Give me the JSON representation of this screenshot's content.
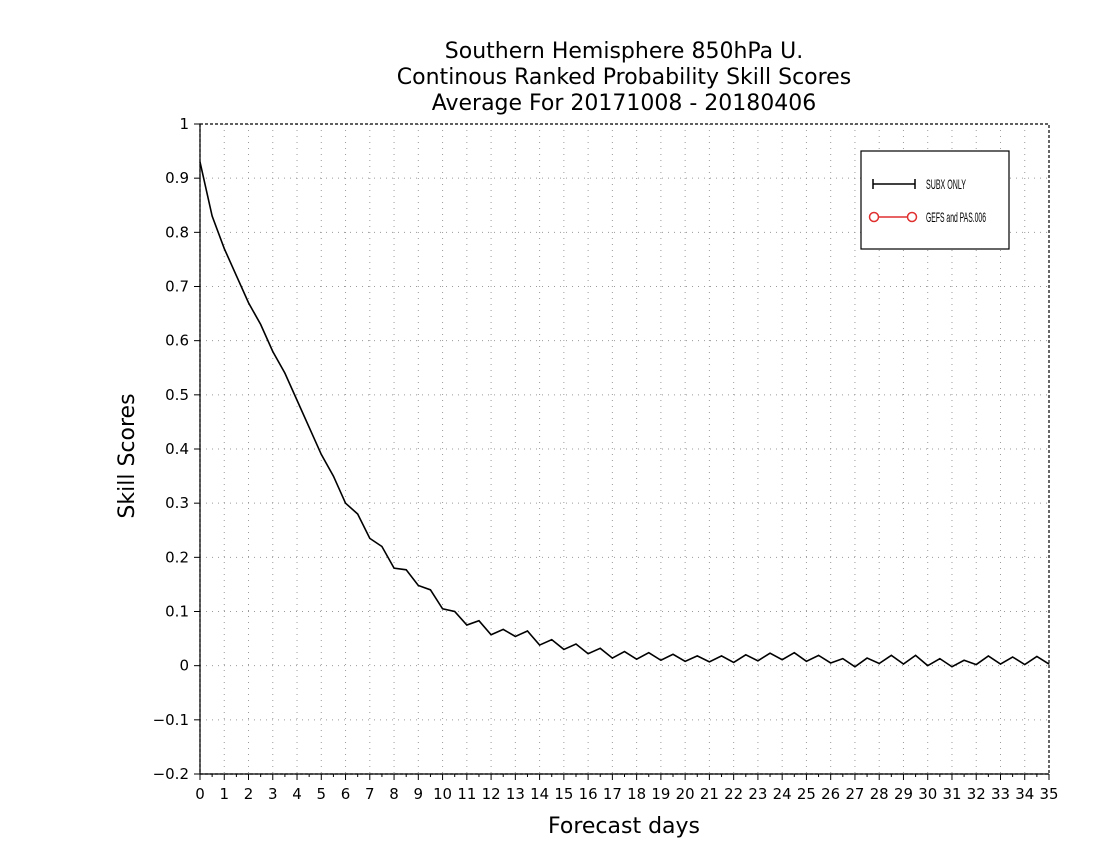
{
  "chart_data": {
    "type": "line",
    "title": [
      "Southern Hemisphere 850hPa U.",
      "Continous Ranked Probability Skill Scores",
      "Average For 20171008 - 20180406"
    ],
    "xlabel": "Forecast days",
    "ylabel": "Skill Scores",
    "xlim": [
      0,
      35
    ],
    "ylim": [
      -0.2,
      1
    ],
    "x_ticks": [
      0,
      1,
      2,
      3,
      4,
      5,
      6,
      7,
      8,
      9,
      10,
      11,
      12,
      13,
      14,
      15,
      16,
      17,
      18,
      19,
      20,
      21,
      22,
      23,
      24,
      25,
      26,
      27,
      28,
      29,
      30,
      31,
      32,
      33,
      34,
      35
    ],
    "y_ticks": [
      -0.2,
      -0.1,
      0,
      0.1,
      0.2,
      0.3,
      0.4,
      0.5,
      0.6,
      0.7,
      0.8,
      0.9,
      1
    ],
    "y_tick_labels": [
      "−0.2",
      "−0.1",
      "0",
      "0.1",
      "0.2",
      "0.3",
      "0.4",
      "0.5",
      "0.6",
      "0.7",
      "0.8",
      "0.9",
      "1"
    ],
    "grid": true,
    "legend_position": "top-right",
    "legend": [
      {
        "name": "SUBX ONLY",
        "color": "#000000",
        "marker": "plus"
      },
      {
        "name": "GEFS and PAS.006",
        "color": "#e03030",
        "marker": "circle"
      }
    ],
    "series": [
      {
        "name": "SUBX ONLY",
        "color": "#000000",
        "x": [
          0,
          0.5,
          1,
          1.5,
          2,
          2.5,
          3,
          3.5,
          4,
          4.5,
          5,
          5.5,
          6,
          6.5,
          7,
          7.5,
          8,
          8.5,
          9,
          9.5,
          10,
          10.5,
          11,
          11.5,
          12,
          12.5,
          13,
          13.5,
          14,
          14.5,
          15,
          15.5,
          16,
          16.5,
          17,
          17.5,
          18,
          18.5,
          19,
          19.5,
          20,
          20.5,
          21,
          21.5,
          22,
          22.5,
          23,
          23.5,
          24,
          24.5,
          25,
          25.5,
          26,
          26.5,
          27,
          27.5,
          28,
          28.5,
          29,
          29.5,
          30,
          30.5,
          31,
          31.5,
          32,
          32.5,
          33,
          33.5,
          34,
          34.5,
          35
        ],
        "y": [
          0.93,
          0.83,
          0.77,
          0.72,
          0.67,
          0.63,
          0.58,
          0.54,
          0.49,
          0.44,
          0.39,
          0.35,
          0.3,
          0.28,
          0.235,
          0.22,
          0.18,
          0.177,
          0.148,
          0.14,
          0.105,
          0.1,
          0.075,
          0.083,
          0.057,
          0.067,
          0.054,
          0.064,
          0.038,
          0.048,
          0.03,
          0.04,
          0.022,
          0.032,
          0.014,
          0.026,
          0.012,
          0.024,
          0.01,
          0.021,
          0.008,
          0.018,
          0.007,
          0.018,
          0.006,
          0.02,
          0.009,
          0.023,
          0.011,
          0.024,
          0.008,
          0.019,
          0.005,
          0.013,
          -0.002,
          0.014,
          0.004,
          0.019,
          0.003,
          0.019,
          0.0,
          0.013,
          -0.002,
          0.01,
          0.002,
          0.018,
          0.003,
          0.016,
          0.002,
          0.017,
          0.003
        ]
      }
    ]
  }
}
